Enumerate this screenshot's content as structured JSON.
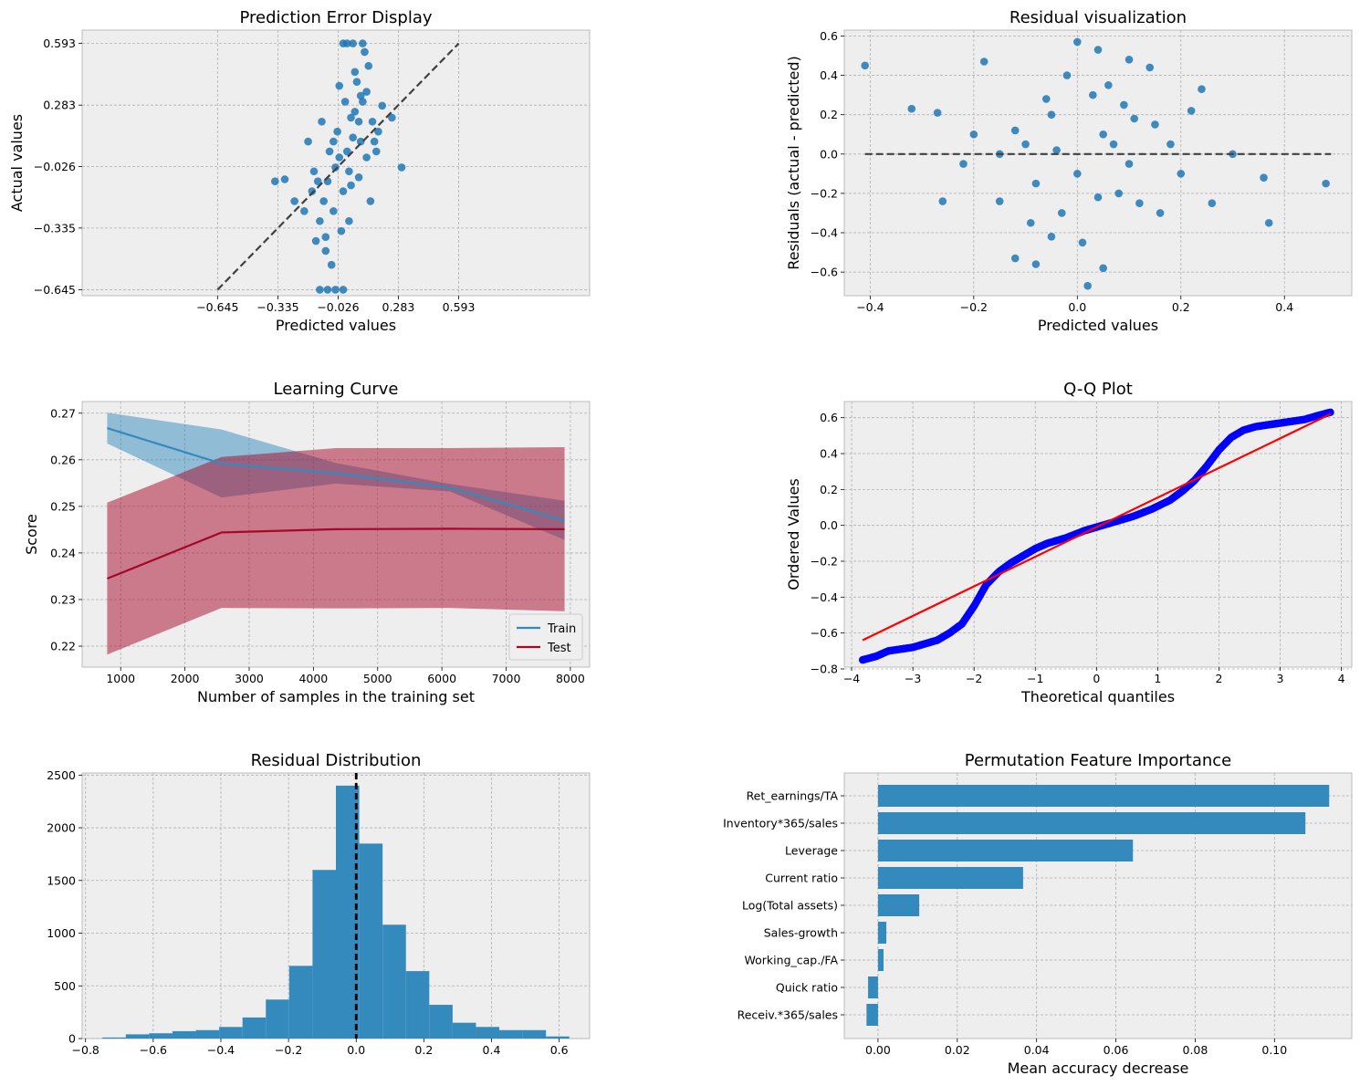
{
  "colors": {
    "axes_bg": "#eeeeee",
    "scatter_blue": "#1f77b4",
    "bar_blue": "#348abd",
    "train_blue": "#348abd",
    "test_red": "#a60628",
    "qq_points": "#0000ff",
    "qq_line": "#ff0000",
    "ref_line": "#404040"
  },
  "chart_data": [
    {
      "id": "pred-error",
      "type": "scatter",
      "title": "Prediction Error Display",
      "xlabel": "Predicted values",
      "ylabel": "Actual values",
      "xlim": [
        -1.34,
        1.265
      ],
      "ylim": [
        -0.675,
        0.66
      ],
      "xticks": [
        -0.645,
        -0.335,
        -0.026,
        0.283,
        0.593
      ],
      "xtick_labels": [
        "−0.645",
        "−0.335",
        "−0.026",
        "0.283",
        "0.593"
      ],
      "yticks": [
        -0.645,
        -0.335,
        -0.026,
        0.283,
        0.593
      ],
      "ytick_labels": [
        "−0.645",
        "−0.335",
        "−0.026",
        "0.283",
        "0.593"
      ],
      "reference_line": [
        [
          -0.645,
          -0.645
        ],
        [
          0.593,
          0.593
        ]
      ],
      "points": [
        [
          -0.04,
          -0.03
        ],
        [
          0.02,
          0.05
        ],
        [
          -0.08,
          -0.1
        ],
        [
          0.05,
          0.12
        ],
        [
          -0.02,
          0.02
        ],
        [
          0.08,
          0.2
        ],
        [
          -0.1,
          -0.2
        ],
        [
          0.03,
          -0.05
        ],
        [
          0.1,
          0.3
        ],
        [
          -0.05,
          0.1
        ],
        [
          0.0,
          -0.15
        ],
        [
          0.06,
          0.25
        ],
        [
          -0.12,
          -0.3
        ],
        [
          0.12,
          0.35
        ],
        [
          -0.03,
          0.15
        ],
        [
          0.04,
          -0.12
        ],
        [
          -0.07,
          0.05
        ],
        [
          0.09,
          0.1
        ],
        [
          -0.15,
          -0.05
        ],
        [
          0.15,
          0.2
        ],
        [
          -0.01,
          -0.35
        ],
        [
          0.07,
          0.4
        ],
        [
          -0.09,
          -0.45
        ],
        [
          0.11,
          0.55
        ],
        [
          0.0,
          0.593
        ],
        [
          0.05,
          0.593
        ],
        [
          0.1,
          0.593
        ],
        [
          0.02,
          0.593
        ],
        [
          -0.04,
          -0.645
        ],
        [
          -0.08,
          -0.645
        ],
        [
          -0.12,
          -0.645
        ],
        [
          0.0,
          -0.645
        ],
        [
          -0.3,
          -0.09
        ],
        [
          -0.35,
          -0.1
        ],
        [
          -0.25,
          -0.2
        ],
        [
          0.25,
          0.22
        ],
        [
          0.3,
          -0.03
        ],
        [
          0.18,
          0.15
        ],
        [
          -0.2,
          -0.25
        ],
        [
          0.14,
          -0.2
        ],
        [
          -0.18,
          0.1
        ],
        [
          0.2,
          0.28
        ],
        [
          -0.06,
          -0.52
        ],
        [
          0.06,
          0.45
        ],
        [
          -0.14,
          -0.4
        ],
        [
          0.13,
          0.48
        ],
        [
          0.01,
          0.3
        ],
        [
          -0.11,
          0.2
        ],
        [
          0.04,
          0.22
        ],
        [
          -0.05,
          -0.25
        ],
        [
          0.08,
          -0.08
        ],
        [
          -0.16,
          -0.15
        ],
        [
          0.17,
          0.05
        ],
        [
          -0.02,
          0.38
        ],
        [
          0.03,
          -0.3
        ],
        [
          0.09,
          0.33
        ],
        [
          -0.09,
          -0.38
        ],
        [
          0.16,
          0.1
        ],
        [
          -0.13,
          -0.1
        ],
        [
          0.12,
          0.02
        ]
      ]
    },
    {
      "id": "residual-vis",
      "type": "scatter",
      "title": "Residual visualization",
      "xlabel": "Predicted values",
      "ylabel": "Residuals (actual - predicted)",
      "xlim": [
        -0.45,
        0.53
      ],
      "ylim": [
        -0.72,
        0.63
      ],
      "xticks": [
        -0.4,
        -0.2,
        0.0,
        0.2,
        0.4
      ],
      "xtick_labels": [
        "−0.4",
        "−0.2",
        "0.0",
        "0.2",
        "0.4"
      ],
      "yticks": [
        -0.6,
        -0.4,
        -0.2,
        0.0,
        0.2,
        0.4,
        0.6
      ],
      "ytick_labels": [
        "−0.6",
        "−0.4",
        "−0.2",
        "0.0",
        "0.2",
        "0.4",
        "0.6"
      ],
      "reference_line": [
        [
          -0.41,
          0.0
        ],
        [
          0.49,
          0.0
        ]
      ],
      "points": [
        [
          -0.41,
          0.45
        ],
        [
          -0.32,
          0.23
        ],
        [
          -0.27,
          0.21
        ],
        [
          -0.26,
          -0.24
        ],
        [
          -0.18,
          0.47
        ],
        [
          -0.15,
          -0.24
        ],
        [
          -0.12,
          -0.53
        ],
        [
          -0.08,
          -0.56
        ],
        [
          -0.05,
          -0.42
        ],
        [
          0.0,
          0.57
        ],
        [
          0.02,
          -0.67
        ],
        [
          0.04,
          0.53
        ],
        [
          0.05,
          -0.58
        ],
        [
          0.1,
          0.48
        ],
        [
          0.14,
          0.44
        ],
        [
          0.16,
          -0.3
        ],
        [
          0.22,
          0.22
        ],
        [
          0.24,
          0.33
        ],
        [
          0.26,
          -0.25
        ],
        [
          0.3,
          0.0
        ],
        [
          0.36,
          -0.12
        ],
        [
          0.37,
          -0.35
        ],
        [
          0.48,
          -0.15
        ],
        [
          -0.2,
          0.1
        ],
        [
          -0.1,
          0.05
        ],
        [
          0.0,
          -0.1
        ],
        [
          0.05,
          0.1
        ],
        [
          0.1,
          -0.05
        ],
        [
          -0.05,
          0.2
        ],
        [
          0.08,
          -0.2
        ],
        [
          -0.15,
          0.0
        ],
        [
          0.15,
          0.15
        ],
        [
          -0.03,
          -0.3
        ],
        [
          0.03,
          0.3
        ],
        [
          0.12,
          -0.25
        ],
        [
          -0.12,
          0.12
        ],
        [
          0.2,
          -0.1
        ],
        [
          -0.08,
          -0.15
        ],
        [
          0.06,
          0.35
        ],
        [
          -0.02,
          0.4
        ],
        [
          0.01,
          -0.45
        ],
        [
          0.09,
          0.25
        ],
        [
          -0.06,
          0.28
        ],
        [
          0.18,
          0.05
        ],
        [
          -0.22,
          -0.05
        ],
        [
          0.11,
          0.18
        ],
        [
          -0.09,
          -0.35
        ],
        [
          0.04,
          -0.22
        ],
        [
          0.07,
          0.05
        ],
        [
          -0.04,
          0.02
        ]
      ]
    },
    {
      "id": "learning-curve",
      "type": "line",
      "title": "Learning Curve",
      "xlabel": "Number of samples in the training set",
      "ylabel": "Score",
      "xlim": [
        400,
        8300
      ],
      "ylim": [
        0.2155,
        0.2725
      ],
      "xticks": [
        1000,
        2000,
        3000,
        4000,
        5000,
        6000,
        7000,
        8000
      ],
      "xtick_labels": [
        "1000",
        "2000",
        "3000",
        "4000",
        "5000",
        "6000",
        "7000",
        "8000"
      ],
      "yticks": [
        0.22,
        0.23,
        0.24,
        0.25,
        0.26,
        0.27
      ],
      "ytick_labels": [
        "0.22",
        "0.23",
        "0.24",
        "0.25",
        "0.26",
        "0.27"
      ],
      "x": [
        790,
        2570,
        4350,
        6130,
        7910
      ],
      "series": [
        {
          "name": "Train",
          "values": [
            0.2668,
            0.2592,
            0.2571,
            0.254,
            0.247
          ],
          "lower": [
            0.2635,
            0.2519,
            0.2549,
            0.2532,
            0.2428
          ],
          "upper": [
            0.2701,
            0.2665,
            0.2593,
            0.2548,
            0.2512
          ]
        },
        {
          "name": "Test",
          "values": [
            0.2345,
            0.2444,
            0.2451,
            0.2452,
            0.2451
          ],
          "lower": [
            0.2182,
            0.2282,
            0.2281,
            0.2282,
            0.2275
          ],
          "upper": [
            0.2508,
            0.2606,
            0.2625,
            0.2625,
            0.2627
          ]
        }
      ],
      "legend_position": "lower-right"
    },
    {
      "id": "qq-plot",
      "type": "scatter",
      "title": "Q-Q Plot",
      "xlabel": "Theoretical quantiles",
      "ylabel": "Ordered Values",
      "xlim": [
        -4.12,
        4.17
      ],
      "ylim": [
        -0.79,
        0.69
      ],
      "xticks": [
        -4,
        -3,
        -2,
        -1,
        0,
        1,
        2,
        3,
        4
      ],
      "xtick_labels": [
        "−4",
        "−3",
        "−2",
        "−1",
        "0",
        "1",
        "2",
        "3",
        "4"
      ],
      "yticks": [
        -0.8,
        -0.6,
        -0.4,
        -0.2,
        0.0,
        0.2,
        0.4,
        0.6
      ],
      "ytick_labels": [
        "−0.8",
        "−0.6",
        "−0.4",
        "−0.2",
        "0.0",
        "0.2",
        "0.4",
        "0.6"
      ],
      "fit_line": [
        [
          -3.82,
          -0.64
        ],
        [
          3.82,
          0.62
        ]
      ],
      "curve": [
        [
          -3.82,
          -0.75
        ],
        [
          -3.6,
          -0.73
        ],
        [
          -3.4,
          -0.7
        ],
        [
          -3.2,
          -0.69
        ],
        [
          -3.0,
          -0.68
        ],
        [
          -2.8,
          -0.66
        ],
        [
          -2.6,
          -0.64
        ],
        [
          -2.4,
          -0.6
        ],
        [
          -2.2,
          -0.55
        ],
        [
          -2.0,
          -0.45
        ],
        [
          -1.8,
          -0.33
        ],
        [
          -1.6,
          -0.26
        ],
        [
          -1.4,
          -0.21
        ],
        [
          -1.2,
          -0.17
        ],
        [
          -1.0,
          -0.13
        ],
        [
          -0.8,
          -0.1
        ],
        [
          -0.5,
          -0.07
        ],
        [
          -0.2,
          -0.03
        ],
        [
          0.0,
          -0.01
        ],
        [
          0.3,
          0.02
        ],
        [
          0.6,
          0.05
        ],
        [
          0.9,
          0.09
        ],
        [
          1.2,
          0.14
        ],
        [
          1.4,
          0.19
        ],
        [
          1.6,
          0.25
        ],
        [
          1.8,
          0.33
        ],
        [
          2.0,
          0.42
        ],
        [
          2.2,
          0.49
        ],
        [
          2.4,
          0.53
        ],
        [
          2.6,
          0.55
        ],
        [
          2.8,
          0.56
        ],
        [
          3.0,
          0.57
        ],
        [
          3.2,
          0.58
        ],
        [
          3.4,
          0.59
        ],
        [
          3.6,
          0.61
        ],
        [
          3.82,
          0.63
        ]
      ]
    },
    {
      "id": "residual-dist",
      "type": "bar",
      "title": "Residual Distribution",
      "xlabel": "",
      "ylabel": "",
      "xlim": [
        -0.81,
        0.69
      ],
      "ylim": [
        0,
        2520
      ],
      "xticks": [
        -0.8,
        -0.6,
        -0.4,
        -0.2,
        0.0,
        0.2,
        0.4,
        0.6
      ],
      "xtick_labels": [
        "−0.8",
        "−0.6",
        "−0.4",
        "−0.2",
        "0.0",
        "0.2",
        "0.4",
        "0.6"
      ],
      "yticks": [
        0,
        500,
        1000,
        1500,
        2000,
        2500
      ],
      "ytick_labels": [
        "0",
        "500",
        "1000",
        "1500",
        "2000",
        "2500"
      ],
      "bin_edges": [
        -0.75,
        -0.681,
        -0.612,
        -0.543,
        -0.474,
        -0.405,
        -0.336,
        -0.267,
        -0.198,
        -0.129,
        -0.06,
        0.009,
        0.078,
        0.147,
        0.216,
        0.285,
        0.354,
        0.423,
        0.492,
        0.561,
        0.63
      ],
      "values": [
        10,
        40,
        50,
        70,
        80,
        110,
        200,
        370,
        690,
        1600,
        2400,
        1850,
        1080,
        640,
        320,
        150,
        110,
        80,
        80,
        20
      ],
      "reference_line_x": 0.0
    },
    {
      "id": "perm-importance",
      "type": "bar",
      "orientation": "horizontal",
      "title": "Permutation Feature Importance",
      "xlabel": "Mean accuracy decrease",
      "ylabel": "",
      "xlim": [
        -0.0085,
        0.1195
      ],
      "xticks": [
        0.0,
        0.02,
        0.04,
        0.06,
        0.08,
        0.1
      ],
      "xtick_labels": [
        "0.00",
        "0.02",
        "0.04",
        "0.06",
        "0.08",
        "0.10"
      ],
      "categories": [
        "Ret_earnings/TA",
        "Inventory*365/sales",
        "Leverage",
        "Current ratio",
        "Log(Total assets)",
        "Sales-growth",
        "Working_cap./FA",
        "Quick ratio",
        "Receiv.*365/sales"
      ],
      "values": [
        0.1138,
        0.1078,
        0.0643,
        0.0366,
        0.0104,
        0.0021,
        0.0014,
        -0.0025,
        -0.0029
      ]
    }
  ],
  "legend": {
    "train_label": "Train",
    "test_label": "Test"
  }
}
